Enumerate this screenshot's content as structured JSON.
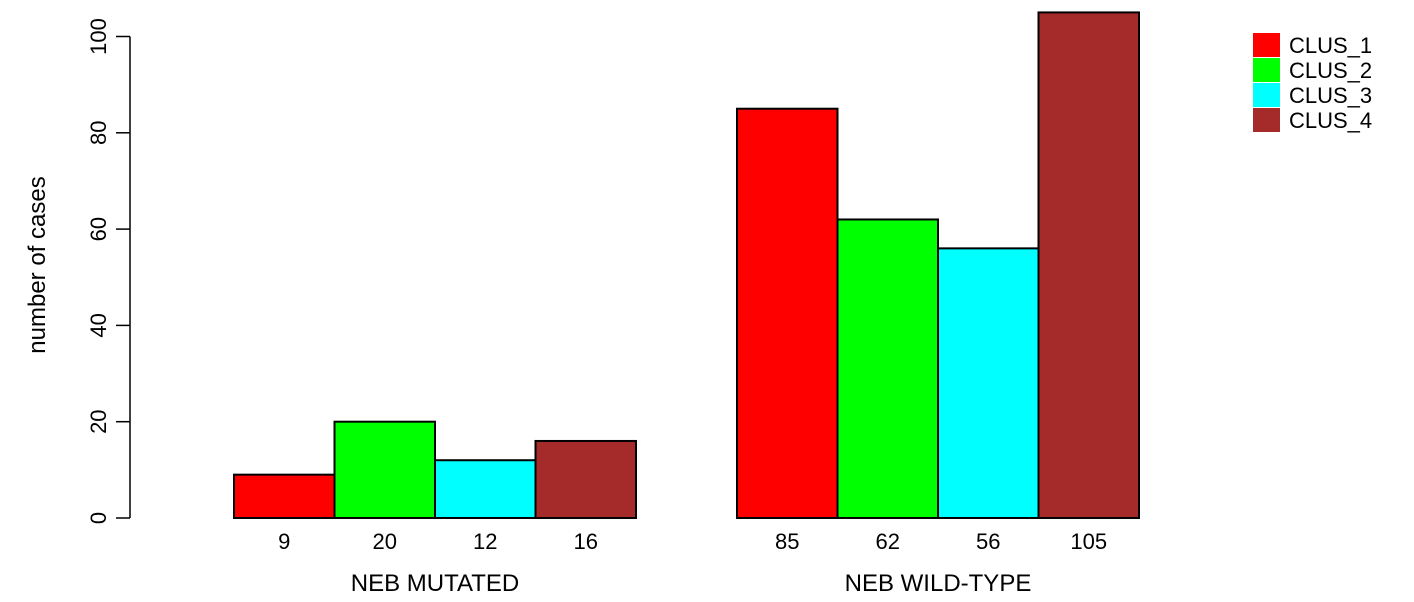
{
  "chart_data": {
    "type": "bar",
    "categories": [
      "NEB MUTATED",
      "NEB WILD-TYPE"
    ],
    "series": [
      {
        "name": "CLUS_1",
        "color": "#ff0000",
        "values": [
          9,
          85
        ]
      },
      {
        "name": "CLUS_2",
        "color": "#00ff00",
        "values": [
          20,
          62
        ]
      },
      {
        "name": "CLUS_3",
        "color": "#00ffff",
        "values": [
          12,
          56
        ]
      },
      {
        "name": "CLUS_4",
        "color": "#a52a2a",
        "values": [
          16,
          105
        ]
      }
    ],
    "value_labels": [
      [
        "9",
        "20",
        "12",
        "16"
      ],
      [
        "85",
        "62",
        "56",
        "105"
      ]
    ],
    "title": "",
    "xlabel": "",
    "ylabel": "number of cases",
    "ylim": [
      0,
      105
    ],
    "yticks": [
      0,
      20,
      40,
      60,
      80,
      100
    ],
    "grid": false,
    "legend": "top-right"
  }
}
